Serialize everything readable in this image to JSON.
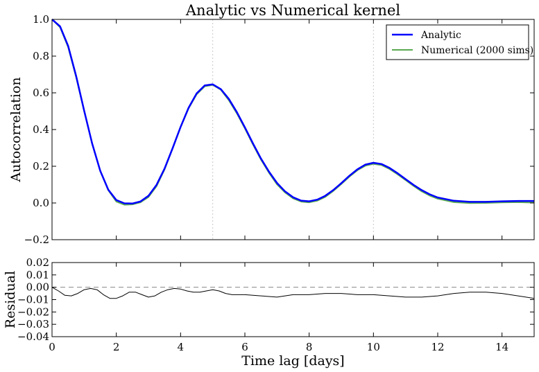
{
  "chart_data": [
    {
      "type": "line",
      "title": "Analytic vs Numerical kernel",
      "xlabel": "",
      "ylabel": "Autocorrelation",
      "xlim": [
        0,
        15
      ],
      "ylim": [
        -0.2,
        1.0
      ],
      "yticks": [
        "−0.2",
        "0.0",
        "0.2",
        "0.4",
        "0.6",
        "0.8",
        "1.0"
      ],
      "ytick_values": [
        -0.2,
        0.0,
        0.2,
        0.4,
        0.6,
        0.8,
        1.0
      ],
      "xtick_values": [
        0,
        2,
        4,
        6,
        8,
        10,
        12,
        14
      ],
      "vlines": [
        5,
        10
      ],
      "grid": false,
      "legend_position": "top-right",
      "series": [
        {
          "name": "Analytic",
          "color": "#0000ff",
          "x": [
            0,
            0.25,
            0.5,
            0.75,
            1.0,
            1.25,
            1.5,
            1.75,
            2.0,
            2.25,
            2.5,
            2.75,
            3.0,
            3.25,
            3.5,
            3.75,
            4.0,
            4.25,
            4.5,
            4.75,
            5.0,
            5.25,
            5.5,
            5.75,
            6.0,
            6.25,
            6.5,
            6.75,
            7.0,
            7.25,
            7.5,
            7.75,
            8.0,
            8.25,
            8.5,
            8.75,
            9.0,
            9.25,
            9.5,
            9.75,
            10.0,
            10.25,
            10.5,
            10.75,
            11.0,
            11.25,
            11.5,
            11.75,
            12.0,
            12.5,
            13.0,
            13.5,
            14.0,
            14.5,
            15.0
          ],
          "y": [
            1.0,
            0.962,
            0.856,
            0.691,
            0.503,
            0.323,
            0.175,
            0.072,
            0.016,
            -0.002,
            -0.003,
            0.008,
            0.039,
            0.098,
            0.187,
            0.298,
            0.414,
            0.519,
            0.597,
            0.64,
            0.646,
            0.62,
            0.567,
            0.495,
            0.412,
            0.325,
            0.242,
            0.17,
            0.109,
            0.063,
            0.031,
            0.013,
            0.009,
            0.018,
            0.039,
            0.07,
            0.108,
            0.148,
            0.183,
            0.209,
            0.219,
            0.212,
            0.191,
            0.162,
            0.13,
            0.098,
            0.07,
            0.047,
            0.03,
            0.012,
            0.006,
            0.006,
            0.009,
            0.011,
            0.011
          ]
        },
        {
          "name": "Numerical (2000 sims)",
          "color": "#5aaa50",
          "x": [
            0,
            0.25,
            0.5,
            0.75,
            1.0,
            1.25,
            1.5,
            1.75,
            2.0,
            2.25,
            2.5,
            2.75,
            3.0,
            3.25,
            3.5,
            3.75,
            4.0,
            4.25,
            4.5,
            4.75,
            5.0,
            5.25,
            5.5,
            5.75,
            6.0,
            6.25,
            6.5,
            6.75,
            7.0,
            7.25,
            7.5,
            7.75,
            8.0,
            8.25,
            8.5,
            8.75,
            9.0,
            9.25,
            9.5,
            9.75,
            10.0,
            10.25,
            10.5,
            10.75,
            11.0,
            11.25,
            11.5,
            11.75,
            12.0,
            12.5,
            13.0,
            13.5,
            14.0,
            14.5,
            15.0
          ],
          "y": [
            1.0,
            0.957,
            0.849,
            0.684,
            0.5,
            0.323,
            0.175,
            0.069,
            0.007,
            -0.01,
            -0.008,
            0.003,
            0.032,
            0.091,
            0.182,
            0.296,
            0.412,
            0.515,
            0.592,
            0.635,
            0.643,
            0.617,
            0.56,
            0.488,
            0.406,
            0.319,
            0.236,
            0.164,
            0.101,
            0.057,
            0.025,
            0.007,
            0.003,
            0.012,
            0.033,
            0.065,
            0.103,
            0.143,
            0.178,
            0.203,
            0.213,
            0.206,
            0.185,
            0.156,
            0.124,
            0.092,
            0.063,
            0.04,
            0.023,
            0.004,
            -0.001,
            0.0,
            0.003,
            0.004,
            0.002
          ]
        }
      ]
    },
    {
      "type": "line",
      "title": "",
      "xlabel": "Time lag [days]",
      "ylabel": "Residual",
      "xlim": [
        0,
        15
      ],
      "ylim": [
        -0.04,
        0.02
      ],
      "yticks": [
        "−0.04",
        "−0.03",
        "−0.02",
        "−0.01",
        "0.00",
        "0.01",
        "0.02"
      ],
      "ytick_values": [
        -0.04,
        -0.03,
        -0.02,
        -0.01,
        0.0,
        0.01,
        0.02
      ],
      "xticks": [
        "0",
        "2",
        "4",
        "6",
        "8",
        "10",
        "12",
        "14"
      ],
      "xtick_values": [
        0,
        2,
        4,
        6,
        8,
        10,
        12,
        14
      ],
      "hline": 0.0,
      "grid": false,
      "series": [
        {
          "name": "",
          "color": "#000000",
          "x": [
            0,
            0.2,
            0.4,
            0.6,
            0.8,
            1.0,
            1.2,
            1.4,
            1.6,
            1.8,
            2.0,
            2.2,
            2.4,
            2.6,
            2.8,
            3.0,
            3.2,
            3.4,
            3.6,
            3.8,
            4.0,
            4.2,
            4.4,
            4.6,
            4.8,
            5.0,
            5.2,
            5.4,
            5.6,
            5.8,
            6.0,
            6.5,
            7.0,
            7.5,
            8.0,
            8.5,
            9.0,
            9.5,
            10.0,
            10.5,
            11.0,
            11.5,
            12.0,
            12.5,
            13.0,
            13.5,
            14.0,
            14.5,
            15.0
          ],
          "y": [
            0.0,
            -0.003,
            -0.0065,
            -0.007,
            -0.005,
            -0.002,
            -0.001,
            -0.002,
            -0.006,
            -0.009,
            -0.009,
            -0.007,
            -0.004,
            -0.004,
            -0.006,
            -0.008,
            -0.007,
            -0.004,
            -0.002,
            -0.001,
            -0.0015,
            -0.003,
            -0.004,
            -0.004,
            -0.003,
            -0.002,
            -0.003,
            -0.005,
            -0.006,
            -0.006,
            -0.006,
            -0.007,
            -0.008,
            -0.006,
            -0.006,
            -0.005,
            -0.005,
            -0.006,
            -0.006,
            -0.007,
            -0.008,
            -0.008,
            -0.007,
            -0.005,
            -0.004,
            -0.004,
            -0.005,
            -0.007,
            -0.009
          ]
        }
      ]
    }
  ]
}
